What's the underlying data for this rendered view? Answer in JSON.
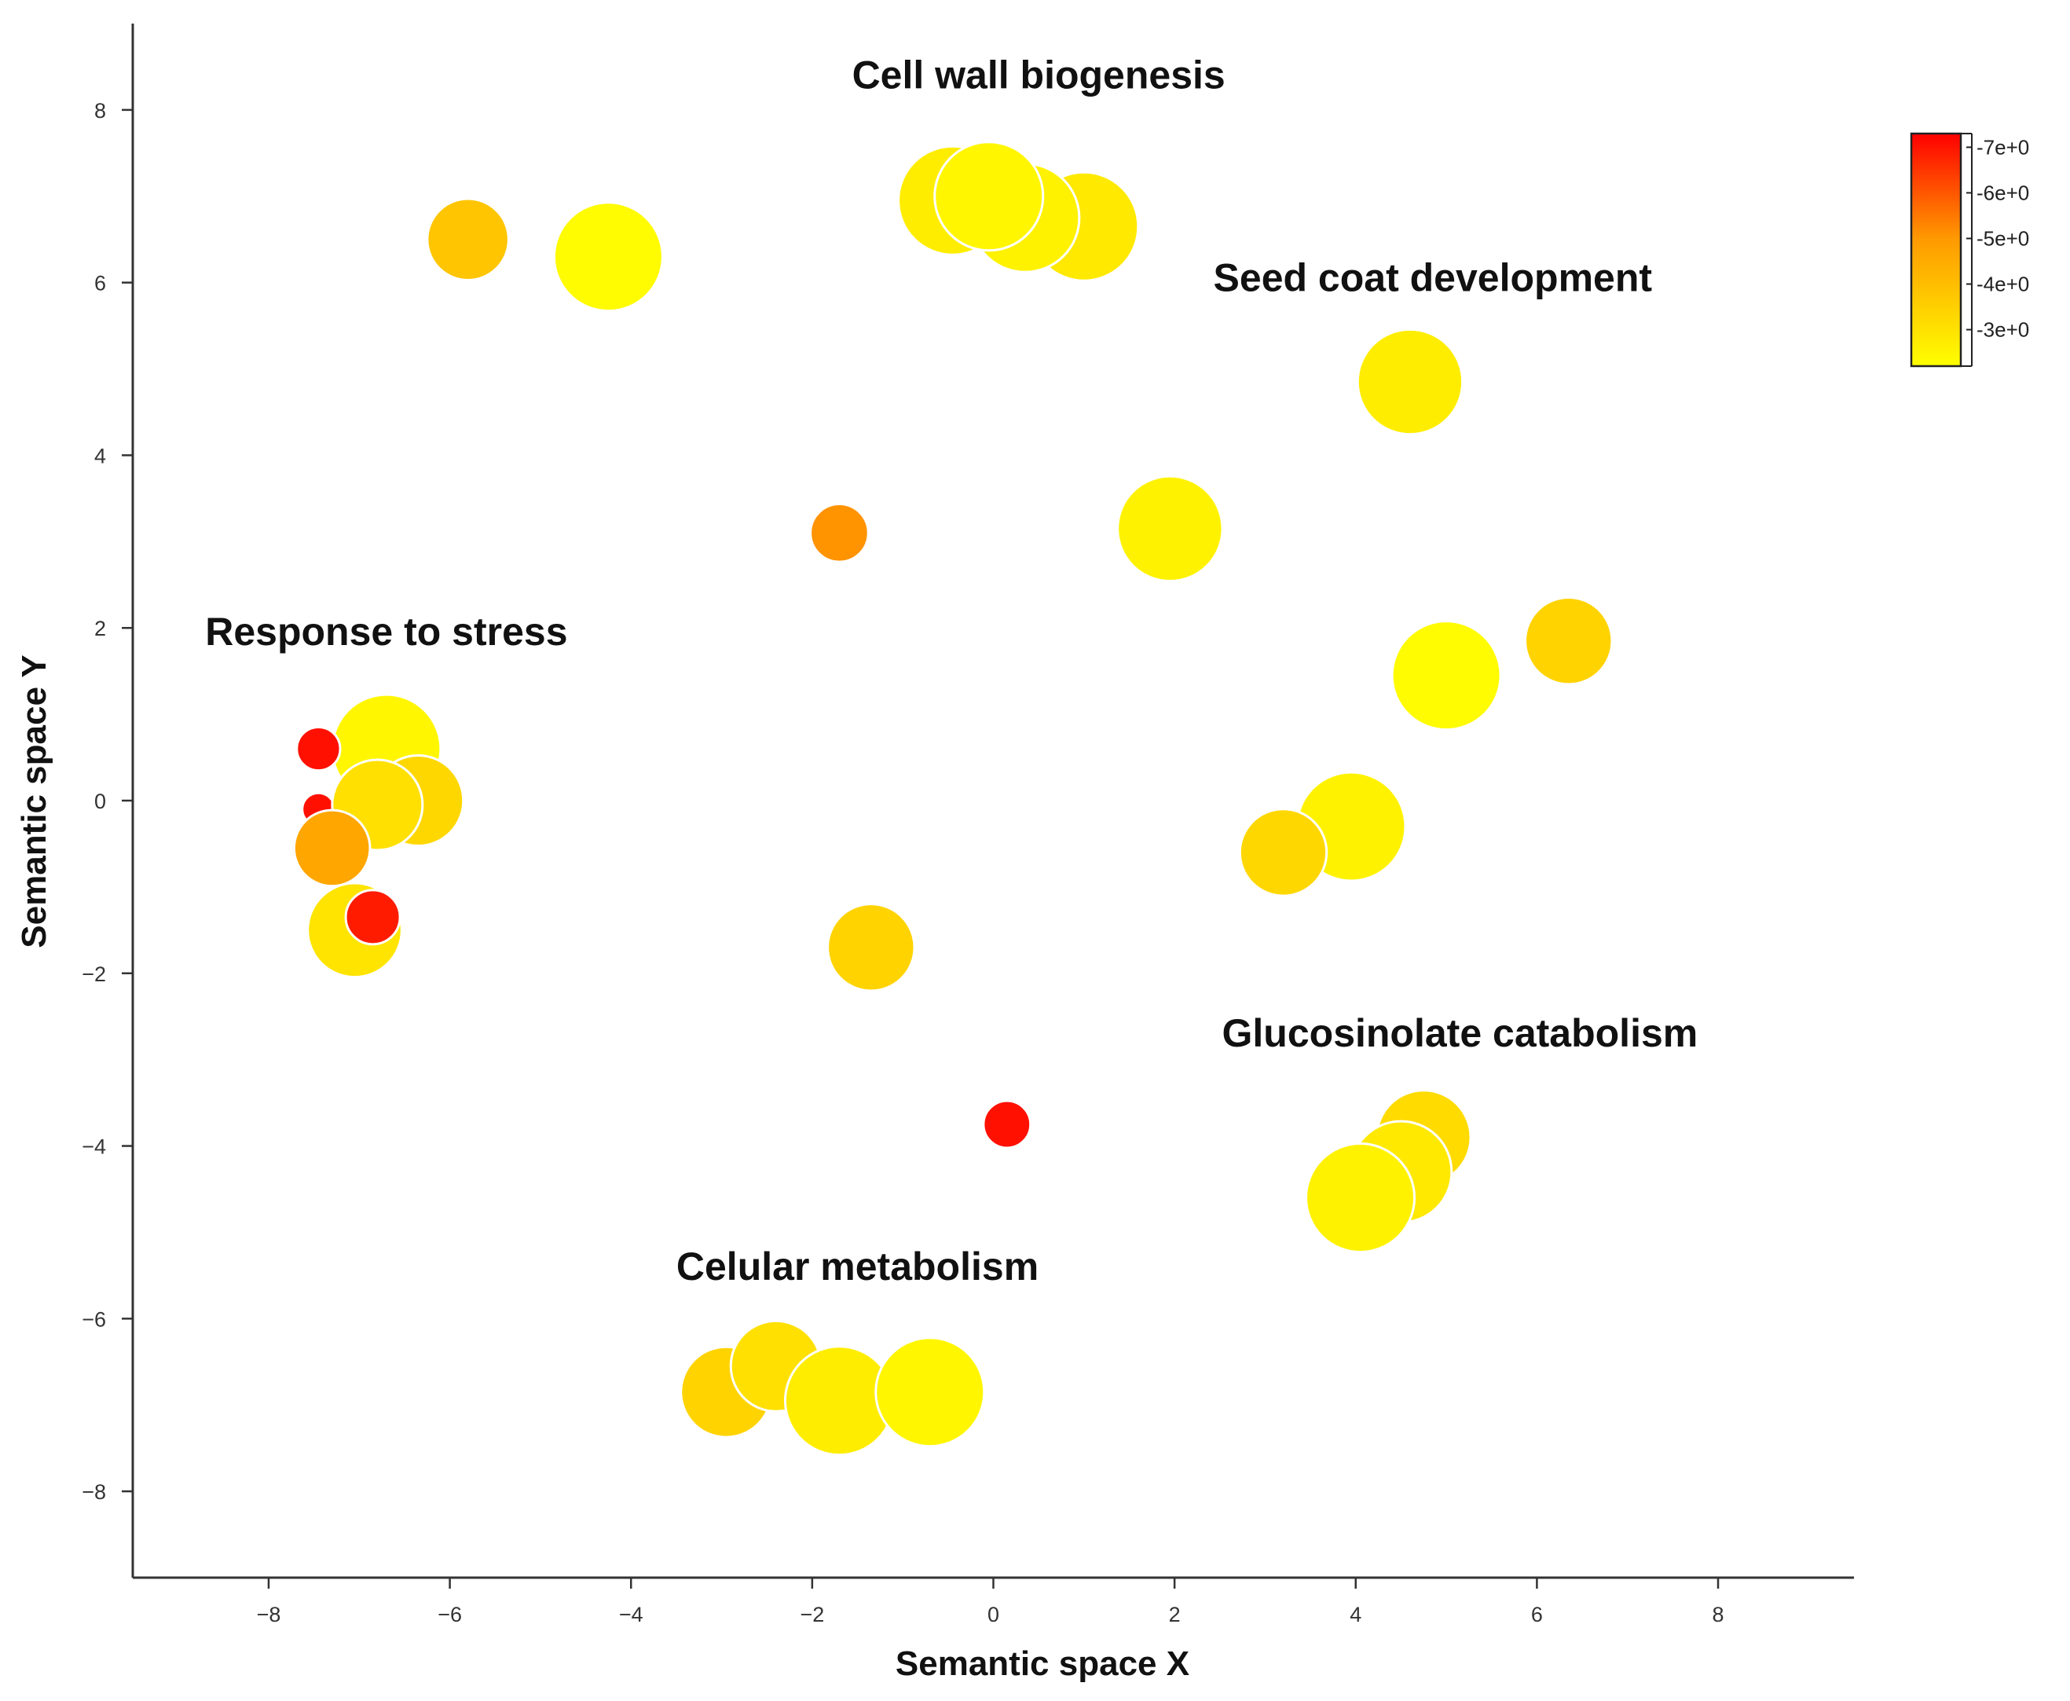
{
  "chart_data": {
    "type": "scatter",
    "xlabel": "Semantic space X",
    "ylabel": "Semantic space Y",
    "xlim": [
      -9.5,
      9.5
    ],
    "ylim": [
      -9.0,
      9.0
    ],
    "x_ticks": [
      -8,
      -6,
      -4,
      -2,
      0,
      2,
      4,
      6,
      8
    ],
    "y_ticks": [
      -8,
      -6,
      -4,
      -2,
      0,
      2,
      4,
      6,
      8
    ],
    "x_tick_labels": [
      "−8",
      "−6",
      "−4",
      "−2",
      "0",
      "2",
      "4",
      "6",
      "8"
    ],
    "y_tick_labels": [
      "−8",
      "−6",
      "−4",
      "−2",
      "0",
      "2",
      "4",
      "6",
      "8"
    ],
    "grid": false,
    "color_scale": {
      "min": -7.3,
      "max": -2.2,
      "low_color": "#ff0000",
      "mid_color": "#ff9900",
      "high_color": "#ffff00",
      "tick_values": [
        -7,
        -6,
        -5,
        -4,
        -3
      ],
      "tick_labels": [
        "-7e+0",
        "-6e+0",
        "-5e+0",
        "-4e+0",
        "-3e+0"
      ],
      "placement": "top-right"
    },
    "cluster_labels": [
      {
        "text": "Cell wall biogenesis",
        "x": 0.5,
        "y": 8.25
      },
      {
        "text": "Seed coat development",
        "x": 4.85,
        "y": 5.9
      },
      {
        "text": "Response to stress",
        "x": -6.7,
        "y": 1.8
      },
      {
        "text": "Glucosinolate catabolism",
        "x": 5.15,
        "y": -2.85
      },
      {
        "text": "Celular metabolism",
        "x": -1.5,
        "y": -5.55
      }
    ],
    "points": [
      {
        "x": -5.8,
        "y": 6.5,
        "size": 4.5,
        "value": -3.5
      },
      {
        "x": -4.25,
        "y": 6.3,
        "size": 6.0,
        "value": -2.3
      },
      {
        "x": -0.45,
        "y": 6.95,
        "size": 6.0,
        "value": -2.6
      },
      {
        "x": 1.0,
        "y": 6.65,
        "size": 6.0,
        "value": -2.7
      },
      {
        "x": 0.35,
        "y": 6.75,
        "size": 6.0,
        "value": -2.5
      },
      {
        "x": -0.05,
        "y": 7.0,
        "size": 6.0,
        "value": -2.4
      },
      {
        "x": 4.6,
        "y": 4.85,
        "size": 5.8,
        "value": -2.6
      },
      {
        "x": -1.7,
        "y": 3.1,
        "size": 3.2,
        "value": -4.6
      },
      {
        "x": 1.95,
        "y": 3.15,
        "size": 5.8,
        "value": -2.5
      },
      {
        "x": 6.35,
        "y": 1.85,
        "size": 4.8,
        "value": -3.2
      },
      {
        "x": 5.0,
        "y": 1.45,
        "size": 6.0,
        "value": -2.3
      },
      {
        "x": -6.7,
        "y": 0.6,
        "size": 6.0,
        "value": -2.4
      },
      {
        "x": -7.45,
        "y": 0.6,
        "size": 2.4,
        "value": -7.0
      },
      {
        "x": -7.45,
        "y": -0.1,
        "size": 1.8,
        "value": -7.0
      },
      {
        "x": -6.35,
        "y": 0.0,
        "size": 5.0,
        "value": -3.1
      },
      {
        "x": -6.8,
        "y": -0.05,
        "size": 5.0,
        "value": -2.9
      },
      {
        "x": -7.3,
        "y": -0.55,
        "size": 4.2,
        "value": -4.2
      },
      {
        "x": -7.05,
        "y": -1.5,
        "size": 5.2,
        "value": -2.8
      },
      {
        "x": -6.85,
        "y": -1.35,
        "size": 3.0,
        "value": -6.8
      },
      {
        "x": 3.95,
        "y": -0.3,
        "size": 6.0,
        "value": -2.5
      },
      {
        "x": 3.2,
        "y": -0.6,
        "size": 4.8,
        "value": -3.1
      },
      {
        "x": -1.35,
        "y": -1.7,
        "size": 4.8,
        "value": -3.2
      },
      {
        "x": 0.15,
        "y": -3.75,
        "size": 2.6,
        "value": -7.0
      },
      {
        "x": 4.75,
        "y": -3.9,
        "size": 5.2,
        "value": -3.0
      },
      {
        "x": 4.5,
        "y": -4.3,
        "size": 5.6,
        "value": -2.7
      },
      {
        "x": 4.05,
        "y": -4.6,
        "size": 6.0,
        "value": -2.5
      },
      {
        "x": -2.95,
        "y": -6.85,
        "size": 5.0,
        "value": -3.2
      },
      {
        "x": -2.4,
        "y": -6.55,
        "size": 5.0,
        "value": -2.9
      },
      {
        "x": -1.7,
        "y": -6.95,
        "size": 6.0,
        "value": -2.6
      },
      {
        "x": -0.7,
        "y": -6.85,
        "size": 6.0,
        "value": -2.4
      }
    ]
  }
}
